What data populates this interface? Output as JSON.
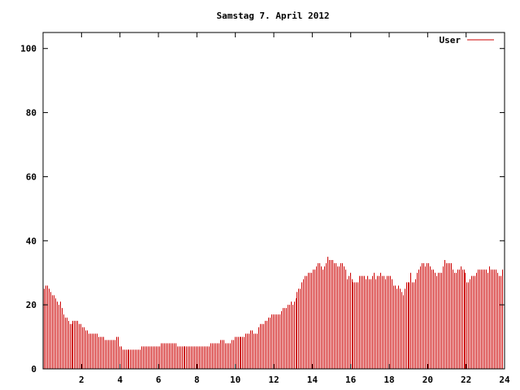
{
  "chart_data": {
    "type": "bar",
    "title": "Samstag 7. April 2012",
    "xlabel": "",
    "ylabel": "",
    "xlim": [
      0,
      24
    ],
    "ylim": [
      0,
      105
    ],
    "x_ticks": [
      2,
      4,
      6,
      8,
      10,
      12,
      14,
      16,
      18,
      20,
      22,
      24
    ],
    "y_ticks": [
      0,
      20,
      40,
      60,
      80,
      100
    ],
    "legend_position": "top-right",
    "grid": false,
    "series": [
      {
        "name": "User",
        "color": "#cc0000",
        "x_step": 0.0833,
        "values": [
          25,
          26,
          26,
          25,
          24,
          23,
          23,
          22,
          21,
          20,
          21,
          19,
          17,
          16,
          16,
          15,
          14,
          14,
          15,
          15,
          15,
          15,
          14,
          14,
          13,
          13,
          12,
          12,
          11,
          11,
          11,
          11,
          11,
          11,
          10,
          10,
          10,
          10,
          9,
          9,
          9,
          9,
          9,
          9,
          9,
          10,
          10,
          7,
          7,
          6,
          6,
          6,
          6,
          6,
          6,
          6,
          6,
          6,
          6,
          6,
          6,
          7,
          7,
          7,
          7,
          7,
          7,
          7,
          7,
          7,
          7,
          7,
          7,
          8,
          8,
          8,
          8,
          8,
          8,
          8,
          8,
          8,
          8,
          7,
          7,
          7,
          7,
          7,
          7,
          7,
          7,
          7,
          7,
          7,
          7,
          7,
          7,
          7,
          7,
          7,
          7,
          7,
          7,
          7,
          8,
          8,
          8,
          8,
          8,
          8,
          9,
          9,
          9,
          8,
          8,
          8,
          8,
          9,
          9,
          10,
          10,
          10,
          10,
          10,
          10,
          10,
          11,
          11,
          11,
          12,
          12,
          11,
          11,
          11,
          13,
          14,
          14,
          14,
          15,
          15,
          16,
          16,
          17,
          17,
          17,
          17,
          17,
          17,
          18,
          19,
          19,
          19,
          20,
          20,
          21,
          20,
          21,
          22,
          24,
          25,
          25,
          27,
          28,
          29,
          29,
          30,
          30,
          30,
          31,
          31,
          32,
          33,
          33,
          32,
          31,
          32,
          33,
          35,
          34,
          34,
          34,
          33,
          33,
          32,
          32,
          33,
          33,
          32,
          31,
          28,
          29,
          30,
          28,
          27,
          27,
          27,
          27,
          29,
          29,
          29,
          29,
          28,
          29,
          28,
          28,
          29,
          30,
          28,
          29,
          29,
          30,
          29,
          29,
          28,
          29,
          29,
          29,
          28,
          26,
          26,
          25,
          26,
          25,
          24,
          23,
          25,
          27,
          27,
          27,
          30,
          27,
          27,
          28,
          30,
          31,
          32,
          33,
          33,
          32,
          33,
          33,
          32,
          31,
          31,
          30,
          29,
          30,
          30,
          30,
          32,
          34,
          33,
          33,
          33,
          33,
          31,
          30,
          30,
          31,
          31,
          32,
          31,
          31,
          30,
          27,
          27,
          28,
          29,
          29,
          29,
          30,
          31,
          31,
          31,
          31,
          31,
          31,
          30,
          32,
          31,
          31,
          31,
          31,
          30,
          29,
          29,
          31
        ]
      }
    ]
  }
}
